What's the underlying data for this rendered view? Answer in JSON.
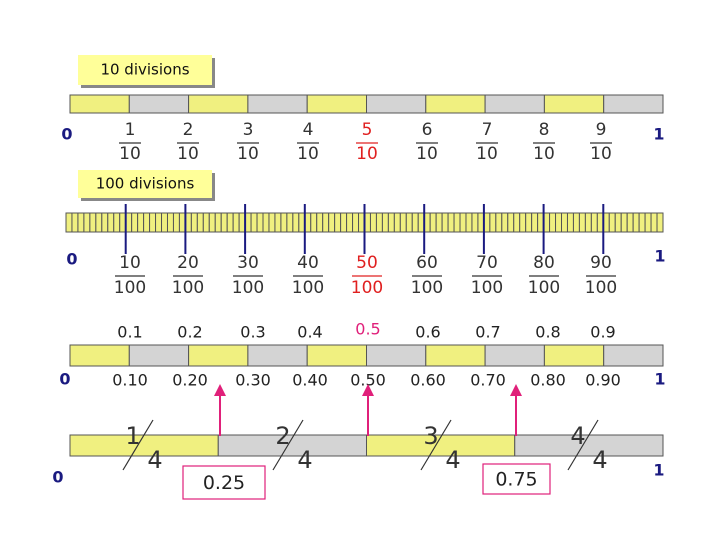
{
  "scale_tenths": {
    "label": "10 divisions",
    "start": "0",
    "end": "1",
    "fractions": [
      {
        "numerator": "1",
        "denominator": "10"
      },
      {
        "numerator": "2",
        "denominator": "10"
      },
      {
        "numerator": "3",
        "denominator": "10"
      },
      {
        "numerator": "4",
        "denominator": "10"
      },
      {
        "numerator": "5",
        "denominator": "10"
      },
      {
        "numerator": "6",
        "denominator": "10"
      },
      {
        "numerator": "7",
        "denominator": "10"
      },
      {
        "numerator": "8",
        "denominator": "10"
      },
      {
        "numerator": "9",
        "denominator": "10"
      }
    ]
  },
  "scale_hundredths": {
    "label": "100 divisions",
    "start": "0",
    "end": "1",
    "fractions": [
      {
        "numerator": "10",
        "denominator": "100"
      },
      {
        "numerator": "20",
        "denominator": "100"
      },
      {
        "numerator": "30",
        "denominator": "100"
      },
      {
        "numerator": "40",
        "denominator": "100"
      },
      {
        "numerator": "50",
        "denominator": "100"
      },
      {
        "numerator": "60",
        "denominator": "100"
      },
      {
        "numerator": "70",
        "denominator": "100"
      },
      {
        "numerator": "80",
        "denominator": "100"
      },
      {
        "numerator": "90",
        "denominator": "100"
      }
    ]
  },
  "scale_decimals": {
    "start": "0",
    "end": "1",
    "decimals_above": [
      "0.1",
      "0.2",
      "0.3",
      "0.4",
      "0.5",
      "0.6",
      "0.7",
      "0.8",
      "0.9"
    ],
    "decimals_below": [
      "0.10",
      "0.20",
      "0.30",
      "0.40",
      "0.50",
      "0.60",
      "0.70",
      "0.80",
      "0.90"
    ]
  },
  "scale_quarters": {
    "start": "0",
    "end": "1",
    "fractions": [
      {
        "numerator": "1",
        "denominator": "4"
      },
      {
        "numerator": "2",
        "denominator": "4"
      },
      {
        "numerator": "3",
        "denominator": "4"
      },
      {
        "numerator": "4",
        "denominator": "4"
      }
    ],
    "callouts": [
      "0.25",
      "0.75"
    ]
  }
}
